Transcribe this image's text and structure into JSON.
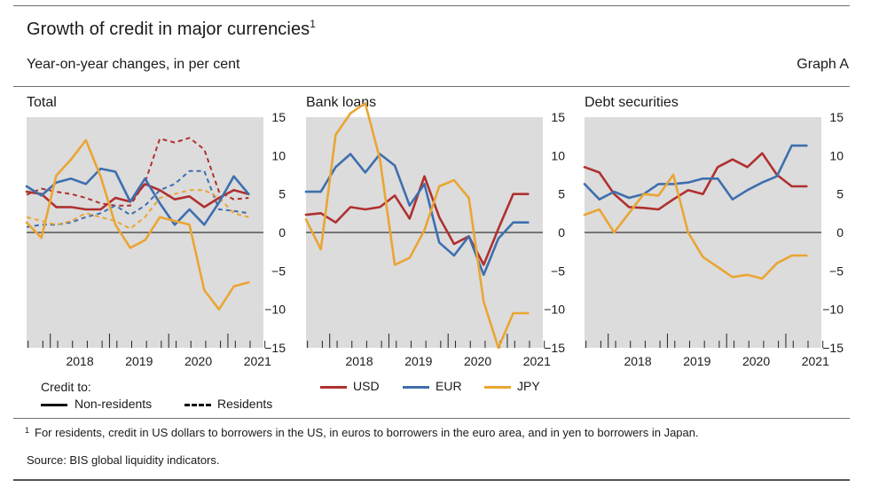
{
  "header": {
    "title": "Growth of credit in major currencies",
    "title_note": "1",
    "subtitle": "Year-on-year changes, in per cent",
    "graph_label": "Graph A"
  },
  "legend": {
    "credit_to_label": "Credit to:",
    "non_residents": "Non-residents",
    "residents": "Residents",
    "usd": "USD",
    "eur": "EUR",
    "jpy": "JPY"
  },
  "colors": {
    "usd": "#b03030",
    "eur": "#3e6fae",
    "jpy": "#eaa534",
    "panel_bg": "#dcdcdc"
  },
  "footnote": {
    "marker": "1",
    "text": "For residents, credit in US dollars to borrowers in the US, in euros to borrowers in the euro area, and in yen to borrowers in Japan."
  },
  "source": "Source: BIS global liquidity indicators.",
  "chart_data": [
    {
      "type": "line",
      "title": "Total",
      "ylim": [
        -15,
        15
      ],
      "yticks": [
        15,
        10,
        5,
        0,
        -5,
        -10,
        -15
      ],
      "xlim": [
        2017.6,
        2021.6
      ],
      "xtick_labels": [
        "2018",
        "2019",
        "2020",
        "2021"
      ],
      "series": [
        {
          "name": "USD",
          "line": "solid",
          "x": [
            2017.6,
            2017.85,
            2018.1,
            2018.35,
            2018.6,
            2018.85,
            2019.1,
            2019.35,
            2019.6,
            2019.85,
            2020.1,
            2020.35,
            2020.6,
            2020.85,
            2021.1,
            2021.35
          ],
          "values": [
            5.3,
            5.0,
            3.3,
            3.3,
            3.0,
            3.0,
            4.5,
            4.0,
            6.3,
            5.5,
            4.3,
            4.7,
            3.3,
            4.5,
            5.5,
            5.0
          ]
        },
        {
          "name": "EUR",
          "line": "solid",
          "x": [
            2017.6,
            2017.85,
            2018.1,
            2018.35,
            2018.6,
            2018.85,
            2019.1,
            2019.35,
            2019.6,
            2019.85,
            2020.1,
            2020.35,
            2020.6,
            2020.85,
            2021.1,
            2021.35
          ],
          "values": [
            6.0,
            4.8,
            6.5,
            7.0,
            6.3,
            8.3,
            7.9,
            4.0,
            7.0,
            3.8,
            1.0,
            3.0,
            1.0,
            3.9,
            7.3,
            5.0
          ]
        },
        {
          "name": "JPY",
          "line": "solid",
          "x": [
            2017.6,
            2017.85,
            2018.1,
            2018.35,
            2018.6,
            2018.85,
            2019.1,
            2019.35,
            2019.6,
            2019.85,
            2020.1,
            2020.35,
            2020.6,
            2020.85,
            2021.1,
            2021.35
          ],
          "values": [
            1.3,
            -0.7,
            7.4,
            9.5,
            12.0,
            7.3,
            1.0,
            -2.0,
            -1.0,
            2.0,
            1.5,
            1.0,
            -7.5,
            -10.0,
            -7.0,
            -6.5
          ]
        },
        {
          "name": "USD (residents)",
          "line": "dashed",
          "x": [
            2017.6,
            2017.85,
            2018.1,
            2018.35,
            2018.6,
            2018.85,
            2019.1,
            2019.35,
            2019.6,
            2019.85,
            2020.1,
            2020.35,
            2020.6,
            2020.85,
            2021.1,
            2021.35
          ],
          "values": [
            4.9,
            5.7,
            5.3,
            5.0,
            4.5,
            3.8,
            3.5,
            3.5,
            6.5,
            12.2,
            11.7,
            12.3,
            10.8,
            5.3,
            4.3,
            4.5
          ]
        },
        {
          "name": "EUR (residents)",
          "line": "dashed",
          "x": [
            2017.6,
            2017.85,
            2018.1,
            2018.35,
            2018.6,
            2018.85,
            2019.1,
            2019.35,
            2019.6,
            2019.85,
            2020.1,
            2020.35,
            2020.6,
            2020.85,
            2021.1,
            2021.35
          ],
          "values": [
            0.7,
            1.0,
            1.0,
            1.3,
            2.0,
            2.5,
            3.5,
            2.3,
            3.5,
            5.5,
            6.3,
            8.0,
            8.0,
            3.0,
            2.8,
            2.5
          ]
        },
        {
          "name": "JPY (residents)",
          "line": "dashed",
          "x": [
            2017.6,
            2017.85,
            2018.1,
            2018.35,
            2018.6,
            2018.85,
            2019.1,
            2019.35,
            2019.6,
            2019.85,
            2020.1,
            2020.35,
            2020.6,
            2020.85,
            2021.1,
            2021.35
          ],
          "values": [
            2.0,
            1.5,
            1.0,
            1.5,
            2.5,
            2.0,
            1.5,
            0.5,
            2.0,
            4.5,
            5.0,
            5.5,
            5.5,
            4.5,
            2.5,
            2.0
          ]
        }
      ]
    },
    {
      "type": "line",
      "title": "Bank loans",
      "ylim": [
        -15,
        15
      ],
      "yticks": [
        15,
        10,
        5,
        0,
        -5,
        -10,
        -15
      ],
      "xlim": [
        2017.6,
        2021.6
      ],
      "xtick_labels": [
        "2018",
        "2019",
        "2020",
        "2021"
      ],
      "series": [
        {
          "name": "USD",
          "line": "solid",
          "x": [
            2017.6,
            2017.85,
            2018.1,
            2018.35,
            2018.6,
            2018.85,
            2019.1,
            2019.35,
            2019.6,
            2019.85,
            2020.1,
            2020.35,
            2020.6,
            2020.85,
            2021.1,
            2021.35
          ],
          "values": [
            2.3,
            2.5,
            1.3,
            3.3,
            3.0,
            3.3,
            4.8,
            1.8,
            7.3,
            2.0,
            -1.5,
            -0.5,
            -4.2,
            0.5,
            5.0,
            5.0
          ]
        },
        {
          "name": "EUR",
          "line": "solid",
          "x": [
            2017.6,
            2017.85,
            2018.1,
            2018.35,
            2018.6,
            2018.85,
            2019.1,
            2019.35,
            2019.6,
            2019.85,
            2020.1,
            2020.35,
            2020.6,
            2020.85,
            2021.1,
            2021.35
          ],
          "values": [
            5.3,
            5.3,
            8.5,
            10.2,
            7.8,
            10.2,
            8.7,
            3.5,
            6.3,
            -1.3,
            -3.0,
            -0.5,
            -5.5,
            -0.8,
            1.3,
            1.3
          ]
        },
        {
          "name": "JPY",
          "line": "solid",
          "x": [
            2017.6,
            2017.85,
            2018.1,
            2018.35,
            2018.6,
            2018.85,
            2019.1,
            2019.35,
            2019.6,
            2019.85,
            2020.1,
            2020.35,
            2020.6,
            2020.85,
            2021.1,
            2021.35
          ],
          "values": [
            1.7,
            -2.2,
            12.7,
            15.5,
            16.8,
            9.5,
            -4.2,
            -3.3,
            0.3,
            6.0,
            6.8,
            4.5,
            -9.0,
            -15.0,
            -10.5,
            -10.5
          ]
        }
      ]
    },
    {
      "type": "line",
      "title": "Debt securities",
      "ylim": [
        -15,
        15
      ],
      "yticks": [
        15,
        10,
        5,
        0,
        -5,
        -10,
        -15
      ],
      "xlim": [
        2017.6,
        2021.6
      ],
      "xtick_labels": [
        "2018",
        "2019",
        "2020",
        "2021"
      ],
      "series": [
        {
          "name": "USD",
          "line": "solid",
          "x": [
            2017.6,
            2017.85,
            2018.1,
            2018.35,
            2018.6,
            2018.85,
            2019.1,
            2019.35,
            2019.6,
            2019.85,
            2020.1,
            2020.35,
            2020.6,
            2020.85,
            2021.1,
            2021.35
          ],
          "values": [
            8.5,
            7.8,
            5.0,
            3.3,
            3.2,
            3.0,
            4.3,
            5.5,
            5.0,
            8.5,
            9.5,
            8.5,
            10.3,
            7.5,
            6.0,
            6.0
          ]
        },
        {
          "name": "EUR",
          "line": "solid",
          "x": [
            2017.6,
            2017.85,
            2018.1,
            2018.35,
            2018.6,
            2018.85,
            2019.1,
            2019.35,
            2019.6,
            2019.85,
            2020.1,
            2020.35,
            2020.6,
            2020.85,
            2021.1,
            2021.35
          ],
          "values": [
            6.3,
            4.3,
            5.3,
            4.5,
            5.0,
            6.3,
            6.3,
            6.5,
            7.0,
            7.0,
            4.3,
            5.5,
            6.5,
            7.3,
            11.3,
            11.3
          ]
        },
        {
          "name": "JPY",
          "line": "solid",
          "x": [
            2017.6,
            2017.85,
            2018.1,
            2018.35,
            2018.6,
            2018.85,
            2019.1,
            2019.35,
            2019.6,
            2019.85,
            2020.1,
            2020.35,
            2020.6,
            2020.85,
            2021.1,
            2021.35
          ],
          "values": [
            2.3,
            3.0,
            0.0,
            2.5,
            5.0,
            4.8,
            7.5,
            0.0,
            -3.2,
            -4.5,
            -5.8,
            -5.5,
            -6.0,
            -4.0,
            -3.0,
            -3.0
          ]
        }
      ]
    }
  ]
}
